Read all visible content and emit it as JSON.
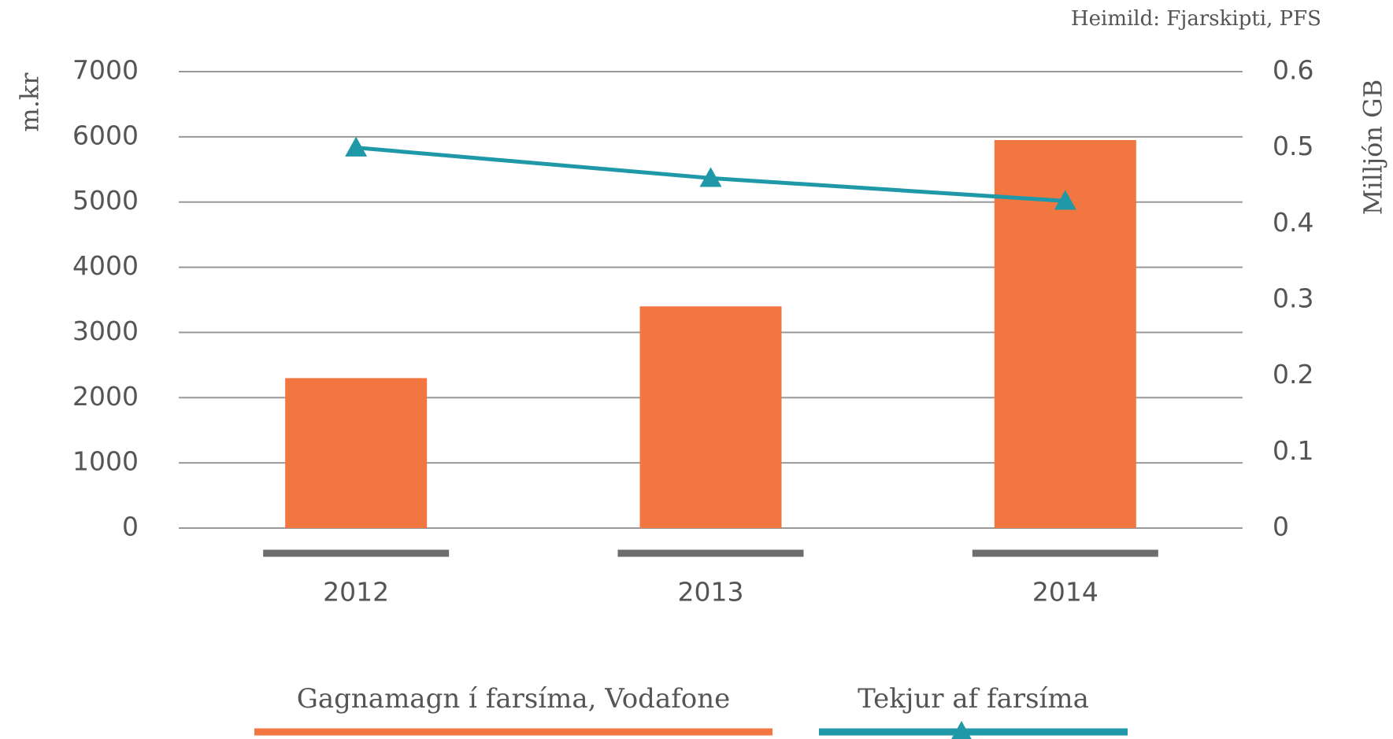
{
  "chart_data": {
    "type": "bar",
    "source": "Heimild: Fjarskipti, PFS",
    "ylabel": "m.kr",
    "y2label": "Milljón GB",
    "categories": [
      "2012",
      "2013",
      "2014"
    ],
    "series": [
      {
        "name": "Gagnamagn í farsíma, Vodafone",
        "color": "#f2763f",
        "type": "bar",
        "values": [
          2300,
          3400,
          5950
        ]
      },
      {
        "name": "Tekjur af farsíma",
        "color": "#1f98a8",
        "type": "line",
        "axis": "y2",
        "values": [
          0.5,
          0.46,
          0.43
        ]
      }
    ],
    "ylim": [
      0,
      7000
    ],
    "yticks": [
      0,
      1000,
      2000,
      3000,
      4000,
      5000,
      6000,
      7000
    ],
    "y2lim": [
      0,
      0.6
    ],
    "y2ticks": [
      0,
      0.1,
      0.2,
      0.3,
      0.4,
      0.5,
      0.6
    ],
    "grid": true
  }
}
